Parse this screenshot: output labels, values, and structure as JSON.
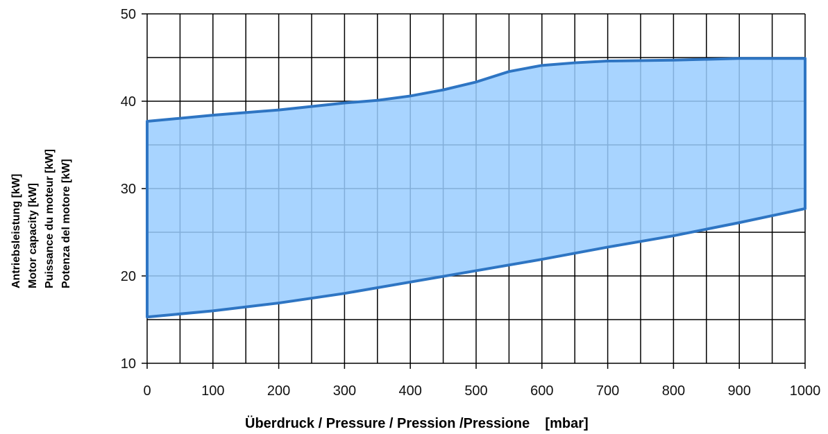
{
  "chart_data": {
    "type": "area",
    "title": "",
    "xlabel": "Überdruck / Pressure / Pression /Pressione    [mbar]",
    "ylabel_lines": [
      "Antriebsleistung [kW]",
      "Motor capacity [kW]",
      "Puissance du moteur [kW]",
      "Potenza del motore [kW]"
    ],
    "xlim": [
      0,
      1000
    ],
    "ylim": [
      10,
      50
    ],
    "x_ticks": [
      0,
      100,
      200,
      300,
      400,
      500,
      600,
      700,
      800,
      900,
      1000
    ],
    "y_ticks": [
      10,
      20,
      30,
      40,
      50
    ],
    "grid": true,
    "grid_x_step": 50,
    "grid_y_step": 5,
    "series": [
      {
        "role": "upper_bound",
        "x": [
          0,
          100,
          200,
          300,
          350,
          400,
          450,
          500,
          550,
          600,
          650,
          700,
          800,
          900,
          1000
        ],
        "y": [
          37.7,
          38.4,
          39.0,
          39.8,
          40.1,
          40.6,
          41.3,
          42.2,
          43.4,
          44.1,
          44.4,
          44.6,
          44.7,
          44.9,
          44.9
        ]
      },
      {
        "role": "lower_bound",
        "x": [
          0,
          100,
          200,
          300,
          400,
          500,
          600,
          700,
          800,
          900,
          1000
        ],
        "y": [
          15.3,
          16.0,
          16.9,
          18.0,
          19.3,
          20.6,
          21.9,
          23.3,
          24.6,
          26.1,
          27.7
        ]
      }
    ],
    "colors": {
      "fill": "#99ccff",
      "stroke": "#2e75c3",
      "grid": "#000000"
    }
  }
}
